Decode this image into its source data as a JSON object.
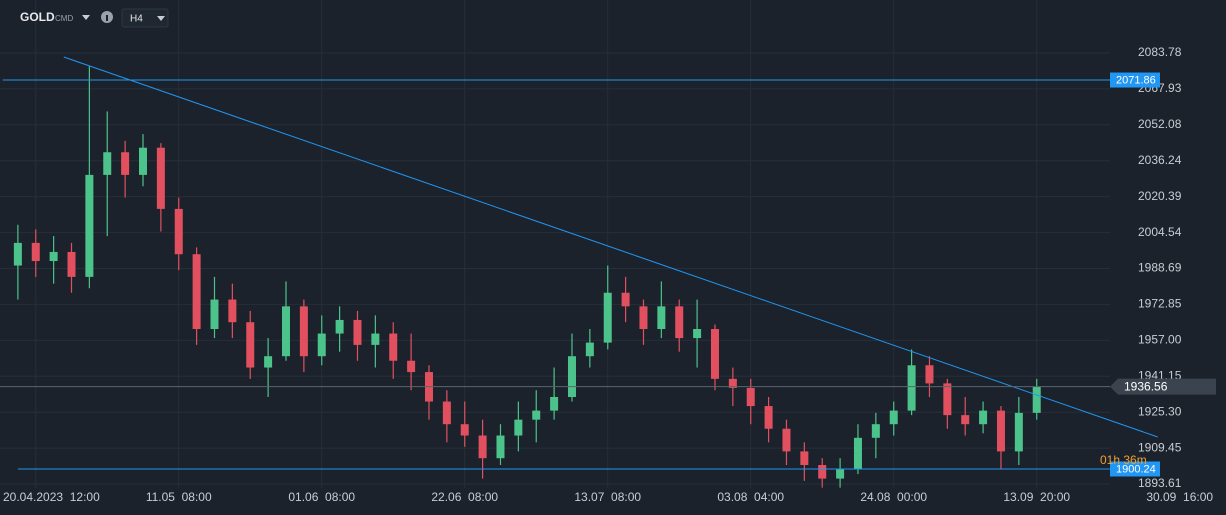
{
  "toolbar": {
    "symbol": "GOLD",
    "market": "CMD",
    "timeframe": "H4"
  },
  "chart_data": {
    "type": "candlestick",
    "up_color": "#4cc38a",
    "down_color": "#e2505f",
    "grid": true,
    "x": [
      1,
      2,
      3,
      4,
      5,
      6,
      7,
      8,
      9,
      10,
      11,
      12,
      13,
      14,
      15,
      16,
      17,
      18,
      19,
      20,
      21,
      22,
      23,
      24,
      25,
      26,
      27,
      28,
      29,
      30,
      31,
      32,
      33,
      34,
      35,
      36,
      37,
      38,
      39,
      40,
      41,
      42,
      43,
      44,
      45,
      46,
      47,
      48,
      49,
      50,
      51,
      52,
      53,
      54,
      55,
      56,
      57,
      58
    ],
    "open": [
      1990,
      2000,
      1992,
      1996,
      1985,
      2030,
      2040,
      2030,
      2042,
      2015,
      1995,
      1962,
      1975,
      1965,
      1945,
      1950,
      1972,
      1950,
      1960,
      1966,
      1955,
      1960,
      1948,
      1943,
      1930,
      1920,
      1915,
      1905,
      1915,
      1922,
      1926,
      1932,
      1950,
      1956,
      1978,
      1972,
      1962,
      1972,
      1958,
      1962,
      1940,
      1936,
      1928,
      1918,
      1908,
      1902,
      1896,
      1900,
      1914,
      1920,
      1926,
      1946,
      1938,
      1924,
      1920,
      1926,
      1908,
      1925
    ],
    "high": [
      2008,
      2006,
      2003,
      2000,
      2078,
      2058,
      2045,
      2048,
      2044,
      2020,
      1998,
      1985,
      1982,
      1970,
      1958,
      1983,
      1975,
      1968,
      1972,
      1970,
      1968,
      1965,
      1960,
      1946,
      1935,
      1930,
      1922,
      1920,
      1930,
      1935,
      1945,
      1960,
      1962,
      1990,
      1985,
      1975,
      1983,
      1975,
      1975,
      1964,
      1945,
      1940,
      1932,
      1922,
      1912,
      1905,
      1905,
      1920,
      1925,
      1930,
      1953,
      1950,
      1940,
      1932,
      1930,
      1928,
      1932,
      1940
    ],
    "low": [
      1975,
      1985,
      1982,
      1978,
      1980,
      2003,
      2020,
      2025,
      2005,
      1988,
      1955,
      1958,
      1958,
      1940,
      1932,
      1948,
      1943,
      1946,
      1952,
      1948,
      1945,
      1940,
      1935,
      1922,
      1912,
      1910,
      1896,
      1902,
      1908,
      1912,
      1922,
      1930,
      1945,
      1953,
      1965,
      1955,
      1958,
      1952,
      1945,
      1935,
      1928,
      1920,
      1912,
      1902,
      1895,
      1892,
      1892,
      1898,
      1905,
      1915,
      1924,
      1932,
      1918,
      1915,
      1916,
      1900,
      1902,
      1922
    ],
    "close": [
      2000,
      1992,
      1996,
      1985,
      2030,
      2040,
      2030,
      2042,
      2015,
      1995,
      1962,
      1975,
      1965,
      1945,
      1950,
      1972,
      1950,
      1960,
      1966,
      1955,
      1960,
      1948,
      1943,
      1930,
      1920,
      1915,
      1905,
      1915,
      1922,
      1926,
      1932,
      1950,
      1956,
      1978,
      1972,
      1962,
      1972,
      1958,
      1962,
      1940,
      1936,
      1928,
      1918,
      1908,
      1902,
      1896,
      1900,
      1914,
      1920,
      1926,
      1946,
      1938,
      1924,
      1920,
      1926,
      1908,
      1925,
      1936.56
    ],
    "xlim": [
      0,
      62.1
    ],
    "xticks": [
      {
        "value": 2,
        "label": "20.04.2023  12:00"
      },
      {
        "value": 10,
        "label": "11.05  08:00"
      },
      {
        "value": 18,
        "label": "01.06  08:00"
      },
      {
        "value": 26,
        "label": "22.06  08:00"
      },
      {
        "value": 34,
        "label": "13.07  08:00"
      },
      {
        "value": 42,
        "label": "03.08  04:00"
      },
      {
        "value": 50,
        "label": "24.08  00:00"
      },
      {
        "value": 58,
        "label": "13.09  20:00"
      },
      {
        "value": 66,
        "label": "30.09  16:00"
      }
    ],
    "ylim": [
      1891.85,
      2107.17
    ],
    "yticks": [
      2083.78,
      2067.93,
      2052.08,
      2036.24,
      2020.39,
      2004.54,
      1988.69,
      1972.85,
      {
        "value": 1957,
        "label": "1957.00"
      },
      1941.15,
      {
        "value": 1925.3,
        "label": "1925.30"
      },
      1909.45,
      1893.61
    ],
    "hlines": [
      {
        "value": 2071.86,
        "x_start": 0.15
      },
      {
        "value": 1900.24,
        "x_start": 1
      }
    ],
    "hline_color": "#2196f3",
    "trendline": {
      "x": [
        3.57,
        64.77
      ],
      "y": [
        2082.02,
        1914.36
      ]
    },
    "last_price": 1936.56,
    "countdown": "01h 36m"
  }
}
